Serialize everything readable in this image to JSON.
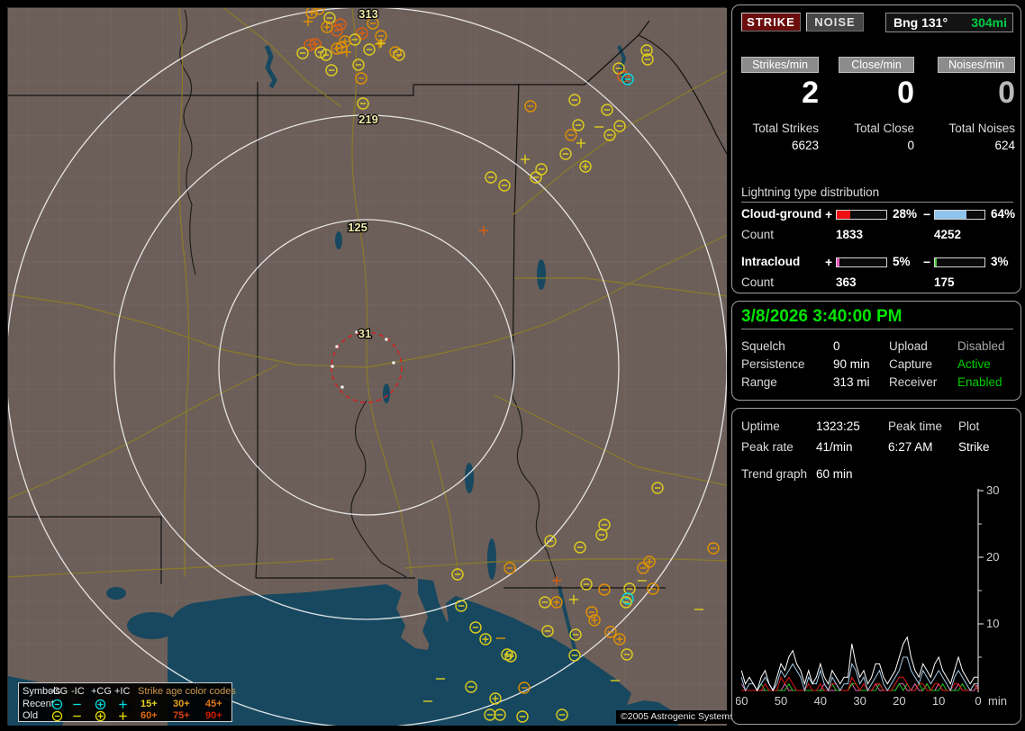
{
  "header": {
    "strike_button": "STRIKE",
    "noise_button": "NOISE",
    "bearing_label": "Bng 131°",
    "bearing_range": "304mi"
  },
  "counters": {
    "columns": [
      {
        "label": "Strikes/min",
        "value": "2",
        "total_label": "Total Strikes",
        "total": "6623"
      },
      {
        "label": "Close/min",
        "value": "0",
        "total_label": "Total Close",
        "total": "0"
      },
      {
        "label": "Noises/min",
        "value": "0",
        "total_label": "Total Noises",
        "total": "624"
      }
    ]
  },
  "distribution": {
    "title": "Lightning type distribution",
    "count_label": "Count",
    "rows": [
      {
        "name": "Cloud-ground",
        "pos": {
          "pct": 28,
          "pct_label": "28%",
          "count": "1833",
          "color": "#ee1111"
        },
        "neg": {
          "pct": 64,
          "pct_label": "64%",
          "count": "4252",
          "color": "#8ec4ec"
        }
      },
      {
        "name": "Intracloud",
        "pos": {
          "pct": 5,
          "pct_label": "5%",
          "count": "363",
          "color": "#ee55bb"
        },
        "neg": {
          "pct": 3,
          "pct_label": "3%",
          "count": "175",
          "color": "#44cc33"
        }
      }
    ]
  },
  "status": {
    "datetime": "3/8/2026 3:40:00 PM",
    "left_rows": [
      {
        "label": "Squelch",
        "value": "0"
      },
      {
        "label": "Persistence",
        "value": "90 min"
      },
      {
        "label": "Range",
        "value": "313 mi"
      }
    ],
    "right_rows": [
      {
        "label": "Upload",
        "value": "Disabled",
        "value_color": "#a8a8a8"
      },
      {
        "label": "Capture",
        "value": "Active",
        "value_color": "#00d000"
      },
      {
        "label": "Receiver",
        "value": "Enabled",
        "value_color": "#00d000"
      }
    ]
  },
  "stats": {
    "uptime_label": "Uptime",
    "uptime": "1323:25",
    "peak_time_label": "Peak time",
    "peak_time": "6:27 AM",
    "plot_label": "Plot",
    "plot_value": "Strike",
    "peak_rate_label": "Peak rate",
    "peak_rate": "41/min",
    "trend_label": "Trend graph",
    "trend_window": "60 min"
  },
  "trend_graph": {
    "type": "line",
    "x_ticks": [
      60,
      50,
      40,
      30,
      20,
      10,
      0
    ],
    "x_unit": "min",
    "y_ticks": [
      10,
      20,
      30
    ],
    "y_minor": [
      5,
      15,
      25
    ],
    "y_max": 30,
    "series": [
      {
        "name": "total",
        "color": "#ffffff",
        "values": [
          3,
          1,
          2,
          1,
          0,
          2,
          3,
          1,
          0,
          2,
          4,
          3,
          5,
          6,
          4,
          3,
          1,
          3,
          1,
          2,
          4,
          2,
          1,
          3,
          2,
          1,
          2,
          2,
          7,
          4,
          2,
          3,
          1,
          2,
          4,
          4,
          2,
          1,
          2,
          3,
          5,
          7,
          8,
          5,
          3,
          2,
          4,
          3,
          2,
          4,
          5,
          3,
          2,
          1,
          3,
          5,
          3,
          2,
          1,
          2,
          2
        ]
      },
      {
        "name": "cg_neg",
        "color": "#a6cbe8",
        "values": [
          2,
          0,
          1,
          1,
          0,
          1,
          2,
          1,
          0,
          1,
          3,
          2,
          3,
          4,
          3,
          2,
          0,
          2,
          1,
          1,
          3,
          1,
          0,
          2,
          1,
          0,
          1,
          1,
          4,
          3,
          1,
          2,
          0,
          1,
          2,
          3,
          1,
          0,
          1,
          2,
          3,
          5,
          5,
          3,
          2,
          1,
          3,
          2,
          1,
          2,
          3,
          2,
          1,
          0,
          2,
          3,
          2,
          1,
          0,
          1,
          1
        ]
      },
      {
        "name": "cg_pos",
        "color": "#e01818",
        "values": [
          0,
          0,
          0,
          0,
          0,
          0,
          1,
          0,
          0,
          0,
          2,
          1,
          2,
          1,
          0,
          0,
          0,
          1,
          0,
          0,
          1,
          0,
          0,
          1,
          1,
          0,
          0,
          0,
          2,
          1,
          0,
          1,
          0,
          0,
          1,
          1,
          0,
          0,
          0,
          1,
          2,
          2,
          1,
          0,
          0,
          1,
          1,
          0,
          0,
          1,
          1,
          0,
          0,
          0,
          1,
          1,
          0,
          0,
          0,
          1,
          0
        ]
      },
      {
        "name": "ic_neg",
        "color": "#22c022",
        "values": [
          0,
          0,
          0,
          0,
          0,
          1,
          0,
          0,
          0,
          0,
          0,
          0,
          1,
          0,
          0,
          0,
          0,
          0,
          0,
          0,
          0,
          0,
          0,
          1,
          0,
          0,
          0,
          0,
          1,
          1,
          0,
          0,
          0,
          0,
          0,
          1,
          0,
          0,
          0,
          0,
          1,
          0,
          1,
          0,
          0,
          1,
          0,
          1,
          0,
          0,
          0,
          1,
          0,
          0,
          0,
          0,
          1,
          0,
          0,
          1,
          0
        ]
      },
      {
        "name": "ic_pos",
        "color": "#e468ac",
        "values": [
          1,
          0,
          0,
          0,
          0,
          0,
          0,
          0,
          0,
          0,
          0,
          1,
          0,
          0,
          0,
          0,
          0,
          0,
          0,
          0,
          0,
          1,
          0,
          0,
          0,
          0,
          0,
          0,
          1,
          0,
          0,
          0,
          0,
          0,
          1,
          0,
          0,
          0,
          0,
          0,
          1,
          1,
          0,
          0,
          1,
          0,
          0,
          1,
          0,
          0,
          1,
          0,
          0,
          0,
          0,
          1,
          0,
          0,
          0,
          0,
          1
        ]
      }
    ]
  },
  "map": {
    "ring_labels": {
      "r313": "313",
      "r219": "219",
      "r125": "125",
      "r31": "31"
    },
    "copyright": "©2005 Astrogenic Systems",
    "strike_colors": {
      "c": "#00dede",
      "y": "#dfcd1e",
      "o": "#e29100",
      "d": "#dd5f10",
      "r": "#d42020"
    },
    "strikes": [
      [
        337,
        5,
        "cp",
        "o"
      ],
      [
        345,
        1,
        "cn",
        "o"
      ],
      [
        333,
        15,
        "ip",
        "o"
      ],
      [
        357,
        11,
        "cn",
        "y"
      ],
      [
        369,
        18,
        "cn",
        "d"
      ],
      [
        365,
        25,
        "cn",
        "d"
      ],
      [
        354,
        21,
        "cp",
        "o"
      ],
      [
        405,
        17,
        "cn",
        "o"
      ],
      [
        393,
        28,
        "cp",
        "d"
      ],
      [
        385,
        35,
        "cn",
        "y"
      ],
      [
        341,
        40,
        "cp",
        "d"
      ],
      [
        335,
        41,
        "cn",
        "d"
      ],
      [
        374,
        37,
        "cp",
        "o"
      ],
      [
        370,
        44,
        "cn",
        "o"
      ],
      [
        365,
        45,
        "cp",
        "o"
      ],
      [
        376,
        49,
        "ip",
        "o"
      ],
      [
        347,
        49,
        "cn",
        "y"
      ],
      [
        353,
        52,
        "cn",
        "y"
      ],
      [
        414,
        31,
        "cn",
        "o"
      ],
      [
        412,
        40,
        "ip",
        "o"
      ],
      [
        430,
        49,
        "cn",
        "o"
      ],
      [
        327,
        50,
        "cn",
        "y"
      ],
      [
        389,
        63,
        "cn",
        "y"
      ],
      [
        359,
        69,
        "cn",
        "y"
      ],
      [
        392,
        78,
        "cn",
        "o"
      ],
      [
        414,
        39,
        "ip",
        "y"
      ],
      [
        434,
        52,
        "cn",
        "y"
      ],
      [
        401,
        46,
        "cn",
        "y"
      ],
      [
        394,
        106,
        "cn",
        "y"
      ],
      [
        709,
        47,
        "cn",
        "y"
      ],
      [
        710,
        57,
        "cn",
        "y"
      ],
      [
        678,
        67,
        "cn",
        "y"
      ],
      [
        683,
        76,
        "cn",
        "d"
      ],
      [
        688,
        79,
        "cn",
        "c"
      ],
      [
        580,
        109,
        "cn",
        "o"
      ],
      [
        629,
        102,
        "cn",
        "y"
      ],
      [
        665,
        113,
        "cn",
        "y"
      ],
      [
        633,
        130,
        "cn",
        "y"
      ],
      [
        656,
        132,
        "in",
        "y"
      ],
      [
        679,
        131,
        "cn",
        "y"
      ],
      [
        668,
        141,
        "cn",
        "y"
      ],
      [
        625,
        141,
        "cn",
        "o"
      ],
      [
        636,
        150,
        "ip",
        "y"
      ],
      [
        619,
        162,
        "cn",
        "y"
      ],
      [
        574,
        168,
        "ip",
        "y"
      ],
      [
        641,
        176,
        "cp",
        "y"
      ],
      [
        592,
        179,
        "cn",
        "y"
      ],
      [
        586,
        188,
        "cn",
        "y"
      ],
      [
        536,
        188,
        "cn",
        "y"
      ],
      [
        551,
        197,
        "cn",
        "y"
      ],
      [
        528,
        247,
        "ip",
        "d"
      ],
      [
        721,
        533,
        "cn",
        "y"
      ],
      [
        662,
        574,
        "cn",
        "y"
      ],
      [
        659,
        585,
        "cn",
        "y"
      ],
      [
        602,
        592,
        "cn",
        "y"
      ],
      [
        635,
        599,
        "cn",
        "y"
      ],
      [
        783,
        600,
        "cn",
        "o"
      ],
      [
        557,
        622,
        "cn",
        "o"
      ],
      [
        712,
        615,
        "cp",
        "o"
      ],
      [
        705,
        622,
        "cn",
        "o"
      ],
      [
        609,
        636,
        "ip",
        "d"
      ],
      [
        704,
        636,
        "in",
        "y"
      ],
      [
        642,
        640,
        "cn",
        "y"
      ],
      [
        662,
        646,
        "cn",
        "o"
      ],
      [
        690,
        645,
        "cn",
        "y"
      ],
      [
        716,
        645,
        "cn",
        "o"
      ],
      [
        688,
        656,
        "cn",
        "c"
      ],
      [
        686,
        660,
        "cn",
        "y"
      ],
      [
        628,
        657,
        "ip",
        "y"
      ],
      [
        596,
        660,
        "cn",
        "y"
      ],
      [
        609,
        660,
        "cp",
        "o"
      ],
      [
        648,
        671,
        "cn",
        "o"
      ],
      [
        651,
        680,
        "cp",
        "o"
      ],
      [
        599,
        692,
        "cn",
        "y"
      ],
      [
        630,
        696,
        "cn",
        "y"
      ],
      [
        767,
        668,
        "in",
        "y"
      ],
      [
        669,
        693,
        "cn",
        "o"
      ],
      [
        679,
        701,
        "cp",
        "o"
      ],
      [
        687,
        718,
        "cn",
        "y"
      ],
      [
        499,
        629,
        "cn",
        "y"
      ],
      [
        503,
        664,
        "cn",
        "y"
      ],
      [
        519,
        688,
        "cn",
        "y"
      ],
      [
        530,
        701,
        "cp",
        "y"
      ],
      [
        547,
        700,
        "in",
        "o"
      ],
      [
        554,
        718,
        "cp",
        "y"
      ],
      [
        558,
        720,
        "cp",
        "y"
      ],
      [
        629,
        719,
        "cn",
        "y"
      ],
      [
        480,
        745,
        "in",
        "y"
      ],
      [
        466,
        770,
        "in",
        "y"
      ],
      [
        514,
        754,
        "cn",
        "y"
      ],
      [
        573,
        755,
        "cn",
        "o"
      ],
      [
        541,
        767,
        "cp",
        "y"
      ],
      [
        535,
        785,
        "cn",
        "y"
      ],
      [
        546,
        785,
        "cn",
        "y"
      ],
      [
        571,
        787,
        "cn",
        "y"
      ],
      [
        615,
        785,
        "cn",
        "y"
      ],
      [
        674,
        747,
        "in",
        "y"
      ]
    ],
    "ring_dots": [
      [
        387,
        360
      ],
      [
        365,
        376
      ],
      [
        360,
        398
      ],
      [
        371,
        421
      ],
      [
        420,
        368
      ],
      [
        428,
        394
      ]
    ],
    "legend": {
      "header": [
        "Symbols",
        "-CG",
        "-IC",
        "+CG",
        "+IC"
      ],
      "age_title": "Strike age color codes",
      "rows": [
        {
          "label": "Recent"
        },
        {
          "label": "Old"
        }
      ],
      "symbol_colors": {
        "recent": "#00e0e0",
        "old": "#e8e000"
      },
      "ages": [
        [
          {
            "t": "15+",
            "c": "#e8d020"
          },
          {
            "t": "30+",
            "c": "#e8a020"
          },
          {
            "t": "45+",
            "c": "#e07818"
          }
        ],
        [
          {
            "t": "60+",
            "c": "#e06810"
          },
          {
            "t": "75+",
            "c": "#d84010"
          },
          {
            "t": "90+",
            "c": "#d81800"
          }
        ]
      ]
    }
  }
}
